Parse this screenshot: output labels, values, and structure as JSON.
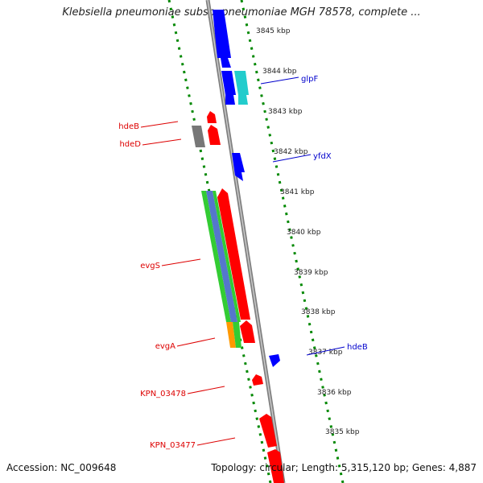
{
  "header": {
    "title": "Klebsiella pneumoniae subsp. pneumoniae MGH 78578, complete ..."
  },
  "footer": {
    "accession": "Accession: NC_009648",
    "topology": "Topology: circular; Length: 5,315,120 bp; Genes: 4,887"
  },
  "map": {
    "kbp_ticks": [
      "3845 kbp",
      "3844 kbp",
      "3843 kbp",
      "3842 kbp",
      "3841 kbp",
      "3840 kbp",
      "3839 kbp",
      "3838 kbp",
      "3837 kbp",
      "3836 kbp",
      "3835 kbp"
    ],
    "forward_labels": [
      "glpF",
      "yfdX",
      "hdeB"
    ],
    "reverse_labels": [
      "hdeB",
      "hdeD",
      "evgS",
      "evgA",
      "KPN_03478",
      "KPN_03477"
    ]
  },
  "colors": {
    "reverse_gene": "#ff0000",
    "forward_gene": "#0000ff",
    "forward_gene_alt": "#22cccc",
    "unknown_gene": "#777777",
    "feature_green": "#33cc33",
    "feature_blue": "#5577cc",
    "feature_orange": "#ff9900",
    "backbone": "#888888",
    "ruler": "#008800"
  }
}
